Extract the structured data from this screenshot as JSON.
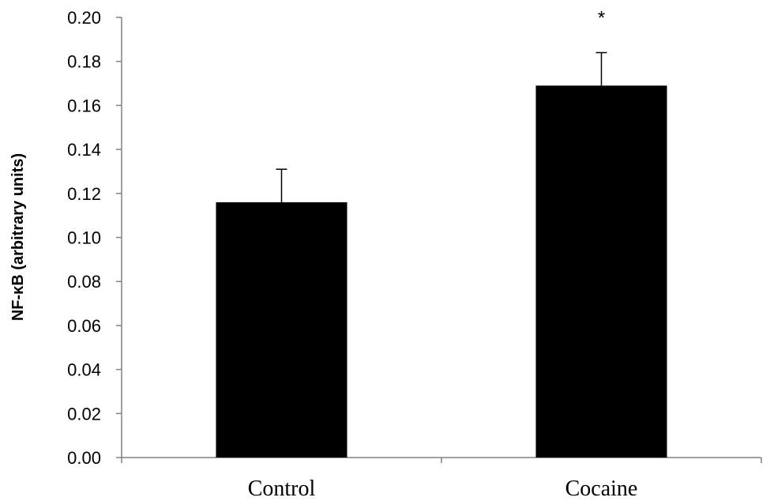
{
  "chart_data": {
    "type": "bar",
    "categories": [
      "Control",
      "Cocaine"
    ],
    "values": [
      0.116,
      0.169
    ],
    "error": [
      0.015,
      0.015
    ],
    "annotations": [
      "",
      "*"
    ],
    "bar_color": "#000000",
    "xlabel": "",
    "ylabel": "NF-κB (arbitrary units)",
    "ylim": [
      0,
      0.2
    ],
    "yticks": [
      0.0,
      0.02,
      0.04,
      0.06,
      0.08,
      0.1,
      0.12,
      0.14,
      0.16,
      0.18,
      0.2
    ],
    "ytick_labels": [
      "0.00",
      "0.02",
      "0.04",
      "0.06",
      "0.08",
      "0.10",
      "0.12",
      "0.14",
      "0.16",
      "0.18",
      "0.20"
    ],
    "grid": false,
    "legend": "none"
  }
}
